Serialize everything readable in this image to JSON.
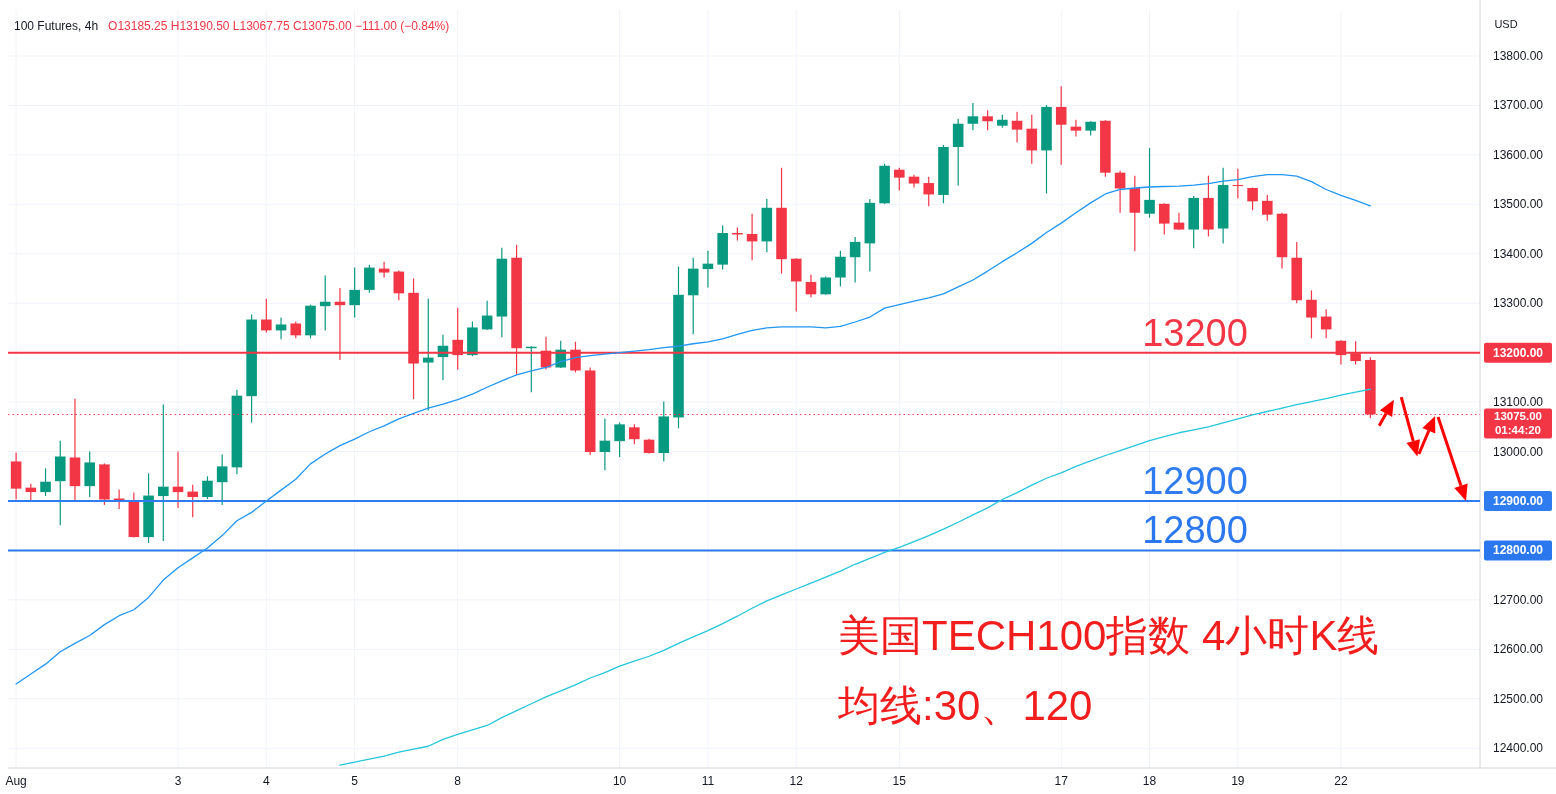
{
  "chart_data": {
    "type": "candlestick",
    "title": "100 Futures, 4h",
    "subtitle": "O13185.25 H13190.50 L13067.75 C13075.00 −111.00 (−0.84%)",
    "ylabel": "USD",
    "categories": [
      "Aug",
      null,
      null,
      null,
      null,
      null,
      null,
      null,
      null,
      null,
      null,
      "3",
      null,
      null,
      null,
      null,
      null,
      "4",
      null,
      null,
      null,
      null,
      null,
      "5",
      null,
      null,
      null,
      null,
      null,
      null,
      "8",
      null,
      null,
      null,
      null,
      null,
      null,
      null,
      null,
      null,
      null,
      "10",
      null,
      null,
      null,
      null,
      null,
      "11",
      null,
      null,
      null,
      null,
      null,
      "12",
      null,
      null,
      null,
      null,
      null,
      null,
      "15",
      null,
      null,
      null,
      null,
      null,
      null,
      null,
      null,
      null,
      null,
      "17",
      null,
      null,
      null,
      null,
      null,
      "18",
      null,
      null,
      null,
      null,
      null,
      "19",
      null,
      null,
      null,
      null,
      null,
      null,
      "22",
      null,
      null
    ],
    "ohlc": [
      [
        12980,
        12998,
        12903,
        12925
      ],
      [
        12927,
        12935,
        12902,
        12918
      ],
      [
        12918,
        12966,
        12910,
        12939
      ],
      [
        12940,
        13022,
        12851,
        12990
      ],
      [
        12988,
        13107,
        12902,
        12930
      ],
      [
        12930,
        13000,
        12908,
        12978
      ],
      [
        12974,
        12976,
        12892,
        12903
      ],
      [
        12905,
        12923,
        12884,
        12901
      ],
      [
        12898,
        12917,
        12826,
        12827
      ],
      [
        12827,
        12956,
        12815,
        12911
      ],
      [
        12910,
        13095,
        12819,
        12929
      ],
      [
        12929,
        13000,
        12886,
        12918
      ],
      [
        12919,
        12933,
        12867,
        12908
      ],
      [
        12908,
        12950,
        12904,
        12941
      ],
      [
        12938,
        12994,
        12892,
        12970
      ],
      [
        12968,
        13125,
        12954,
        13113
      ],
      [
        13112,
        13277,
        13059,
        13267
      ],
      [
        13267,
        13309,
        13241,
        13245
      ],
      [
        13245,
        13271,
        13227,
        13257
      ],
      [
        13259,
        13263,
        13229,
        13235
      ],
      [
        13235,
        13297,
        13229,
        13295
      ],
      [
        13294,
        13356,
        13245,
        13303
      ],
      [
        13303,
        13331,
        13185,
        13296
      ],
      [
        13296,
        13372,
        13271,
        13327
      ],
      [
        13327,
        13378,
        13321,
        13372
      ],
      [
        13370,
        13384,
        13352,
        13362
      ],
      [
        13364,
        13366,
        13306,
        13320
      ],
      [
        13321,
        13350,
        13106,
        13178
      ],
      [
        13180,
        13309,
        13083,
        13190
      ],
      [
        13191,
        13236,
        13144,
        13214
      ],
      [
        13226,
        13291,
        13166,
        13195
      ],
      [
        13195,
        13263,
        13193,
        13251
      ],
      [
        13247,
        13305,
        13246,
        13275
      ],
      [
        13273,
        13412,
        13231,
        13390
      ],
      [
        13392,
        13418,
        13156,
        13209
      ],
      [
        13209,
        13213,
        13120,
        13212
      ],
      [
        13204,
        13232,
        13166,
        13170
      ],
      [
        13170,
        13224,
        13169,
        13206
      ],
      [
        13206,
        13222,
        13160,
        13164
      ],
      [
        13164,
        13170,
        12993,
        12999
      ],
      [
        12999,
        13067,
        12962,
        13022
      ],
      [
        13021,
        13059,
        12989,
        13055
      ],
      [
        13049,
        13055,
        13015,
        13025
      ],
      [
        13024,
        13026,
        12996,
        12997
      ],
      [
        12997,
        13101,
        12980,
        13071
      ],
      [
        13069,
        13374,
        13047,
        13317
      ],
      [
        13316,
        13392,
        13237,
        13370
      ],
      [
        13369,
        13406,
        13332,
        13380
      ],
      [
        13378,
        13457,
        13368,
        13442
      ],
      [
        13442,
        13453,
        13427,
        13439
      ],
      [
        13440,
        13481,
        13387,
        13425
      ],
      [
        13425,
        13511,
        13403,
        13493
      ],
      [
        13493,
        13574,
        13360,
        13389
      ],
      [
        13390,
        13391,
        13283,
        13344
      ],
      [
        13343,
        13358,
        13312,
        13318
      ],
      [
        13318,
        13354,
        13317,
        13352
      ],
      [
        13352,
        13406,
        13334,
        13394
      ],
      [
        13393,
        13434,
        13342,
        13424
      ],
      [
        13421,
        13511,
        13364,
        13503
      ],
      [
        13502,
        13582,
        13501,
        13578
      ],
      [
        13570,
        13574,
        13528,
        13554
      ],
      [
        13556,
        13560,
        13534,
        13542
      ],
      [
        13543,
        13556,
        13496,
        13520
      ],
      [
        13519,
        13620,
        13502,
        13616
      ],
      [
        13616,
        13673,
        13538,
        13663
      ],
      [
        13663,
        13705,
        13650,
        13678
      ],
      [
        13678,
        13690,
        13650,
        13668
      ],
      [
        13659,
        13681,
        13655,
        13671
      ],
      [
        13669,
        13687,
        13625,
        13651
      ],
      [
        13653,
        13681,
        13582,
        13609
      ],
      [
        13609,
        13701,
        13522,
        13697
      ],
      [
        13697,
        13739,
        13580,
        13661
      ],
      [
        13657,
        13671,
        13637,
        13649
      ],
      [
        13649,
        13668,
        13639,
        13667
      ],
      [
        13669,
        13670,
        13556,
        13564
      ],
      [
        13564,
        13568,
        13483,
        13532
      ],
      [
        13533,
        13558,
        13405,
        13483
      ],
      [
        13481,
        13614,
        13473,
        13509
      ],
      [
        13501,
        13502,
        13439,
        13461
      ],
      [
        13463,
        13483,
        13448,
        13449
      ],
      [
        13449,
        13517,
        13411,
        13513
      ],
      [
        13513,
        13558,
        13435,
        13449
      ],
      [
        13451,
        13574,
        13421,
        13539
      ],
      [
        13539,
        13572,
        13512,
        13538
      ],
      [
        13533,
        13534,
        13488,
        13506
      ],
      [
        13507,
        13519,
        13467,
        13479
      ],
      [
        13481,
        13483,
        13370,
        13393
      ],
      [
        13392,
        13424,
        13300,
        13306
      ],
      [
        13307,
        13326,
        13229,
        13271
      ],
      [
        13273,
        13288,
        13229,
        13247
      ],
      [
        13224,
        13225,
        13176,
        13195
      ],
      [
        13199,
        13223,
        13176,
        13183
      ],
      [
        13185.25,
        13190.5,
        13067.75,
        13075
      ]
    ],
    "colors": [
      "#f23645",
      "#f23645",
      "#089981",
      "#089981",
      "#f23645",
      "#089981",
      "#f23645",
      "#f23645",
      "#f23645",
      "#089981",
      "#089981",
      "#f23645",
      "#f23645",
      "#089981",
      "#089981",
      "#089981",
      "#089981",
      "#f23645",
      "#089981",
      "#f23645",
      "#089981",
      "#089981",
      "#f23645",
      "#089981",
      "#089981",
      "#f23645",
      "#f23645",
      "#f23645",
      "#089981",
      "#089981",
      "#f23645",
      "#089981",
      "#089981",
      "#089981",
      "#f23645",
      "#089981",
      "#f23645",
      "#089981",
      "#f23645",
      "#f23645",
      "#089981",
      "#089981",
      "#f23645",
      "#f23645",
      "#089981",
      "#089981",
      "#089981",
      "#089981",
      "#089981",
      "#f23645",
      "#f23645",
      "#089981",
      "#f23645",
      "#f23645",
      "#f23645",
      "#089981",
      "#089981",
      "#089981",
      "#089981",
      "#089981",
      "#f23645",
      "#f23645",
      "#f23645",
      "#089981",
      "#089981",
      "#089981",
      "#f23645",
      "#089981",
      "#f23645",
      "#f23645",
      "#089981",
      "#f23645",
      "#f23645",
      "#089981",
      "#f23645",
      "#f23645",
      "#f23645",
      "#089981",
      "#f23645",
      "#f23645",
      "#089981",
      "#f23645",
      "#089981",
      "#f23645",
      "#f23645",
      "#f23645",
      "#f23645",
      "#f23645",
      "#f23645",
      "#f23645",
      "#f23645",
      "#f23645",
      "#f23645"
    ],
    "series": [
      {
        "type": "line",
        "color": "#2196f3",
        "values": [
          12530,
          12550,
          12570,
          12595,
          12612,
          12628,
          12650,
          12668,
          12680,
          12705,
          12740,
          12765,
          12785,
          12805,
          12830,
          12860,
          12877,
          12900,
          12922,
          12944,
          12975,
          12995,
          13012,
          13025,
          13040,
          13052,
          13066,
          13077,
          13088,
          13096,
          13105,
          13116,
          13130,
          13143,
          13155,
          13163,
          13170,
          13182,
          13190,
          13194,
          13197,
          13200,
          13203,
          13206,
          13210,
          13213,
          13218,
          13222,
          13228,
          13237,
          13245,
          13250,
          13252,
          13252,
          13252,
          13250,
          13253,
          13262,
          13272,
          13290,
          13297,
          13304,
          13311,
          13319,
          13333,
          13347,
          13365,
          13384,
          13402,
          13421,
          13443,
          13462,
          13483,
          13503,
          13521,
          13530,
          13533,
          13535,
          13536,
          13537,
          13539,
          13542,
          13547,
          13550,
          13556,
          13560,
          13560,
          13557,
          13546,
          13530,
          13518,
          13508,
          13497
        ]
      },
      {
        "type": "line",
        "color": "#26c6da",
        "values": [
          null,
          null,
          null,
          null,
          null,
          null,
          null,
          null,
          null,
          null,
          null,
          null,
          null,
          null,
          null,
          null,
          null,
          null,
          null,
          null,
          null,
          null,
          12366,
          12372,
          12378,
          12384,
          12392,
          12398,
          12404,
          12418,
          12428,
          12437,
          12446,
          12462,
          12476,
          12490,
          12504,
          12516,
          12528,
          12542,
          12553,
          12566,
          12576,
          12586,
          12598,
          12612,
          12625,
          12638,
          12652,
          12667,
          12683,
          12698,
          12710,
          12722,
          12734,
          12746,
          12758,
          12772,
          12784,
          12796,
          12806,
          12818,
          12830,
          12843,
          12857,
          12872,
          12886,
          12903,
          12917,
          12932,
          12946,
          12957,
          12970,
          12981,
          12992,
          13002,
          13012,
          13022,
          13030,
          13038,
          13044,
          13050,
          13058,
          13066,
          13074,
          13081,
          13088,
          13095,
          13101,
          13107,
          13114,
          13120,
          13126
        ]
      }
    ],
    "ylim": [
      12360,
      13893
    ],
    "yticks": [
      {
        "value": 12400,
        "label": "12400.00"
      },
      {
        "value": 12500,
        "label": "12500.00"
      },
      {
        "value": 12600,
        "label": "12600.00"
      },
      {
        "value": 12700,
        "label": "12700.00"
      },
      {
        "value": 12800,
        "label": "12800.00"
      },
      {
        "value": 12900,
        "label": "12900.00"
      },
      {
        "value": 13000,
        "label": "13000.00"
      },
      {
        "value": 13100,
        "label": "13100.00"
      },
      {
        "value": 13200,
        "label": "13200.00"
      },
      {
        "value": 13300,
        "label": "13300.00"
      },
      {
        "value": 13400,
        "label": "13400.00"
      },
      {
        "value": 13500,
        "label": "13500.00"
      },
      {
        "value": 13600,
        "label": "13600.00"
      },
      {
        "value": 13700,
        "label": "13700.00"
      },
      {
        "value": 13800,
        "label": "13800.00"
      }
    ],
    "grid": true,
    "ref_lines": [
      {
        "axis": "y",
        "value": 13200,
        "label": "13200",
        "color": "#f23645",
        "line_style": "solid"
      },
      {
        "axis": "y",
        "value": 13075,
        "label": "13075.00",
        "color": "#f23645",
        "line_style": "dotted"
      },
      {
        "axis": "y",
        "value": 12900,
        "label": "12900",
        "color": "#2f7cf0",
        "line_style": "solid"
      },
      {
        "axis": "y",
        "value": 12800,
        "label": "12800",
        "color": "#2b78ee",
        "line_style": "solid"
      }
    ],
    "annotations": [
      "美国TECH100指数 4小时K线",
      "均线:30、120",
      "01:44:20"
    ]
  }
}
